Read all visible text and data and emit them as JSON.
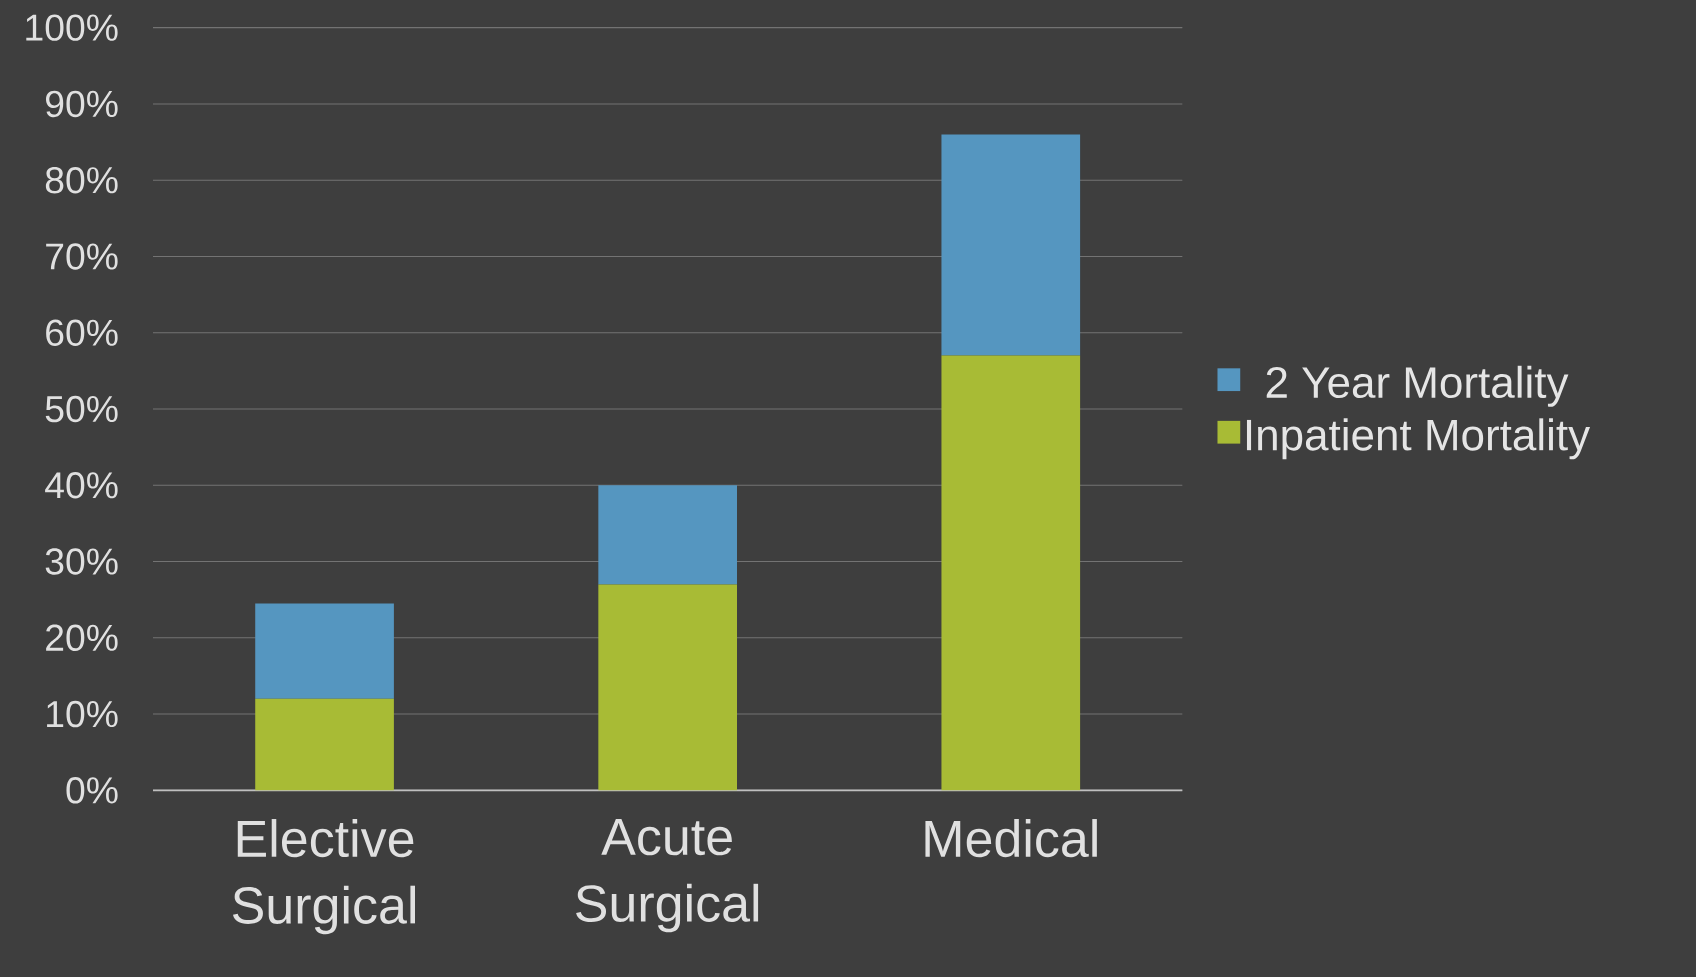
{
  "chart_data": {
    "type": "bar",
    "stacked": true,
    "categories": [
      "Elective Surgical",
      "Acute Surgical",
      "Medical"
    ],
    "series": [
      {
        "name": "Inpatient Mortality",
        "color": "#a8bb35",
        "values": [
          12,
          27,
          57
        ]
      },
      {
        "name": "2 Year Mortality",
        "color": "#5596c0",
        "values": [
          12.5,
          13,
          29
        ]
      }
    ],
    "ylim": [
      0,
      100
    ],
    "yticks": [
      {
        "value": 0,
        "label": "0%"
      },
      {
        "value": 10,
        "label": "10%"
      },
      {
        "value": 20,
        "label": "20%"
      },
      {
        "value": 30,
        "label": "30%"
      },
      {
        "value": 40,
        "label": "40%"
      },
      {
        "value": 50,
        "label": "50%"
      },
      {
        "value": 60,
        "label": "60%"
      },
      {
        "value": 70,
        "label": "70%"
      },
      {
        "value": 80,
        "label": "80%"
      },
      {
        "value": 90,
        "label": "90%"
      },
      {
        "value": 100,
        "label": "100%"
      }
    ],
    "grid": "y",
    "legend": "right"
  }
}
